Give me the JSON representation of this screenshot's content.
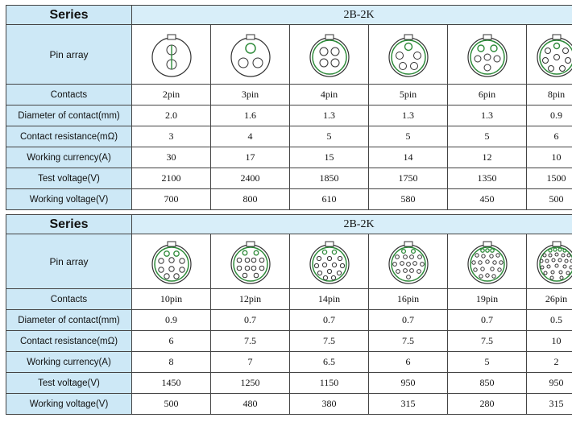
{
  "tables": [
    {
      "series_label": "Series",
      "series_value": "2B-2K",
      "row_labels": {
        "pin_array": "Pin array",
        "contacts": "Contacts",
        "diameter": "Diameter of contact(mm)",
        "resistance": "Contact resistance(mΩ)",
        "current": "Working currency(A)",
        "test_voltage": "Test voltage(V)",
        "working_voltage": "Working voltage(V)"
      },
      "columns": [
        {
          "contacts": "2pin",
          "diameter": "2.0",
          "resistance": "3",
          "current": "30",
          "test_voltage": "2100",
          "working_voltage": "700"
        },
        {
          "contacts": "3pin",
          "diameter": "1.6",
          "resistance": "4",
          "current": "17",
          "test_voltage": "2400",
          "working_voltage": "800"
        },
        {
          "contacts": "4pin",
          "diameter": "1.3",
          "resistance": "5",
          "current": "15",
          "test_voltage": "1850",
          "working_voltage": "610"
        },
        {
          "contacts": "5pin",
          "diameter": "1.3",
          "resistance": "5",
          "current": "14",
          "test_voltage": "1750",
          "working_voltage": "580"
        },
        {
          "contacts": "6pin",
          "diameter": "1.3",
          "resistance": "5",
          "current": "12",
          "test_voltage": "1350",
          "working_voltage": "450"
        },
        {
          "contacts": "8pin",
          "diameter": "0.9",
          "resistance": "6",
          "current": "10",
          "test_voltage": "1500",
          "working_voltage": "500"
        }
      ]
    },
    {
      "series_label": "Series",
      "series_value": "2B-2K",
      "row_labels": {
        "pin_array": "Pin array",
        "contacts": "Contacts",
        "diameter": "Diameter of contact(mm)",
        "resistance": "Contact resistance(mΩ)",
        "current": "Working currency(A)",
        "test_voltage": "Test voltage(V)",
        "working_voltage": "Working voltage(V)"
      },
      "columns": [
        {
          "contacts": "10pin",
          "diameter": "0.9",
          "resistance": "6",
          "current": "8",
          "test_voltage": "1450",
          "working_voltage": "500"
        },
        {
          "contacts": "12pin",
          "diameter": "0.7",
          "resistance": "7.5",
          "current": "7",
          "test_voltage": "1250",
          "working_voltage": "480"
        },
        {
          "contacts": "14pin",
          "diameter": "0.7",
          "resistance": "7.5",
          "current": "6.5",
          "test_voltage": "1150",
          "working_voltage": "380"
        },
        {
          "contacts": "16pin",
          "diameter": "0.7",
          "resistance": "7.5",
          "current": "6",
          "test_voltage": "950",
          "working_voltage": "315"
        },
        {
          "contacts": "19pin",
          "diameter": "0.7",
          "resistance": "7.5",
          "current": "5",
          "test_voltage": "850",
          "working_voltage": "280"
        },
        {
          "contacts": "26pin",
          "diameter": "0.5",
          "resistance": "10",
          "current": "2",
          "test_voltage": "950",
          "working_voltage": "315"
        }
      ]
    }
  ],
  "colors": {
    "label_bg": "#cde8f6",
    "series_bg": "#d8eef9",
    "contact_ring": "#2e8b3a",
    "outline": "#333333"
  }
}
